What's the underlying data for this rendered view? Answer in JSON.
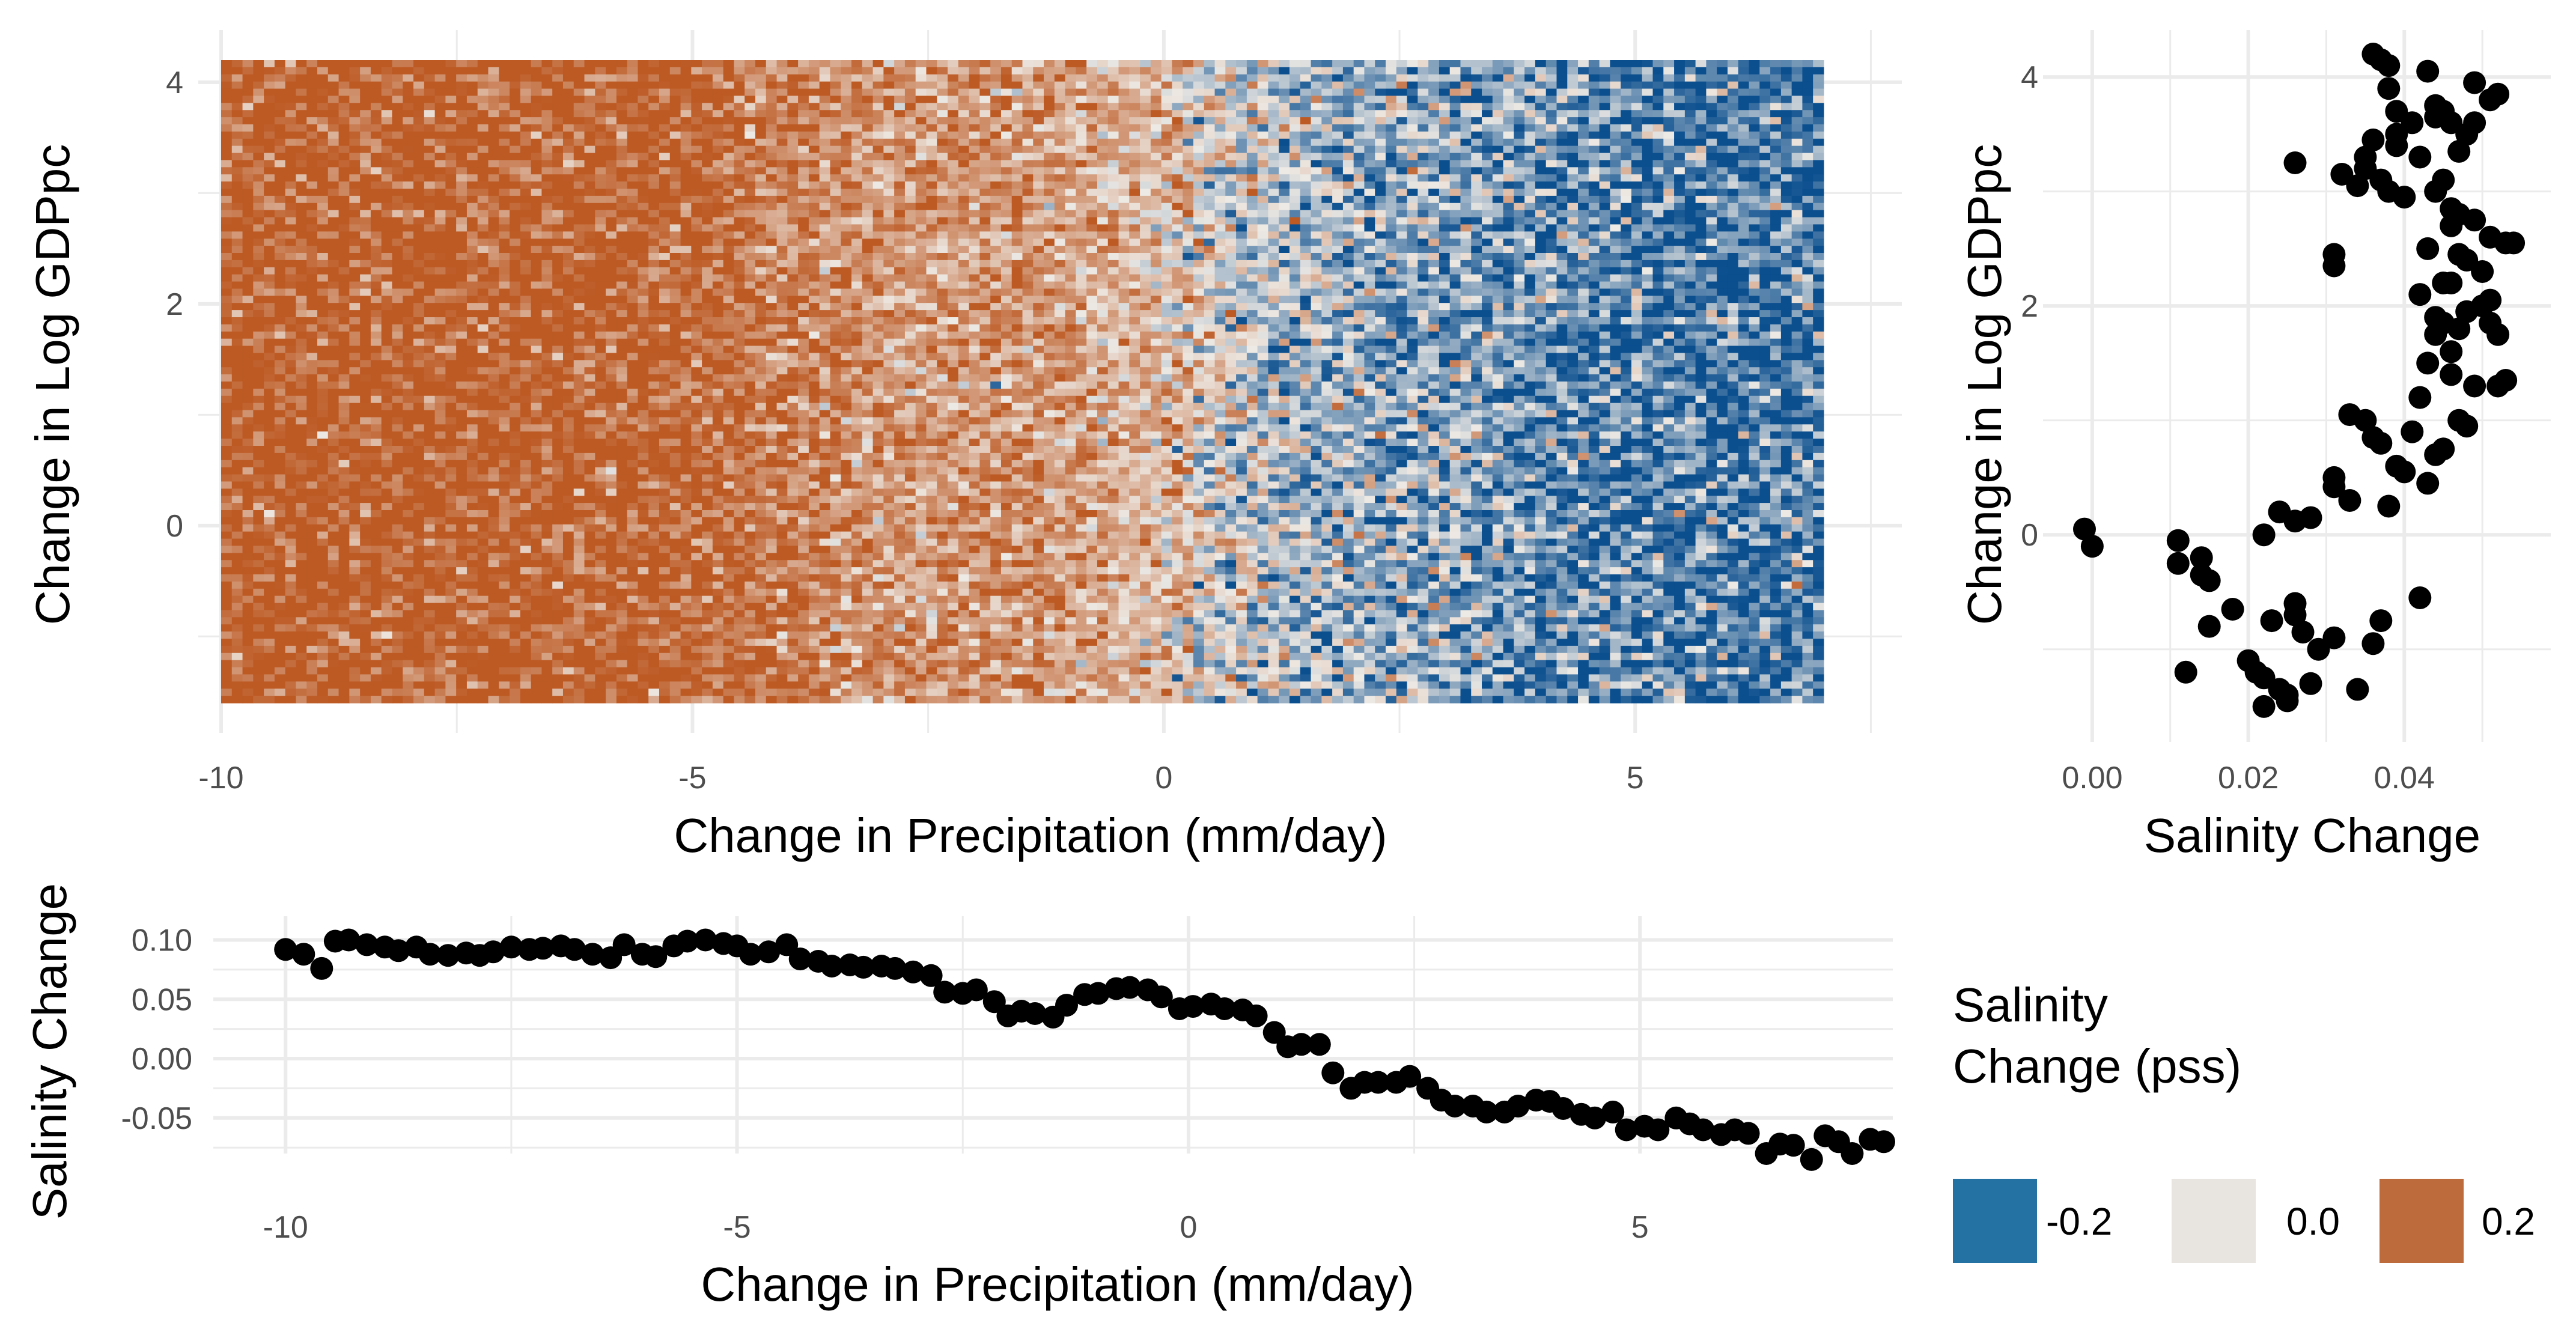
{
  "chart_data": [
    {
      "type": "heatmap",
      "xlabel": "Change in Precipitation (mm/day)",
      "ylabel": "Change in Log GDPpc",
      "xlim": [
        -10,
        7
      ],
      "ylim": [
        -1.6,
        4.2
      ],
      "x_ticks": [
        -10,
        -5,
        0,
        5
      ],
      "x_tick_labels": [
        "-10",
        "-5",
        "0",
        "5"
      ],
      "y_ticks": [
        0,
        2,
        4
      ],
      "y_tick_labels": [
        "0",
        "2",
        "4"
      ],
      "grid": true,
      "fill_variable": "Salinity Change (pss)",
      "fill_trend": [
        {
          "x": -10,
          "value": 0.1
        },
        {
          "x": -5,
          "value": 0.095
        },
        {
          "x": -3,
          "value": 0.055
        },
        {
          "x": -1.5,
          "value": 0.06
        },
        {
          "x": 0,
          "value": 0.03
        },
        {
          "x": 1,
          "value": -0.02
        },
        {
          "x": 3,
          "value": -0.045
        },
        {
          "x": 5,
          "value": -0.07
        },
        {
          "x": 7,
          "value": -0.075
        }
      ]
    },
    {
      "type": "scatter",
      "xlabel": "Salinity Change",
      "ylabel": "Change in Log GDPpc",
      "xlim": [
        -0.004,
        0.058
      ],
      "ylim": [
        -1.6,
        4.2
      ],
      "x_ticks": [
        0.0,
        0.02,
        0.04
      ],
      "x_tick_labels": [
        "0.00",
        "0.02",
        "0.04"
      ],
      "y_ticks": [
        0,
        2,
        4
      ],
      "y_tick_labels": [
        "0",
        "2",
        "4"
      ],
      "grid": true,
      "points": [
        [
          -0.001,
          0.05
        ],
        [
          0.0,
          -0.1
        ],
        [
          0.011,
          -0.05
        ],
        [
          0.011,
          -0.25
        ],
        [
          0.014,
          -0.2
        ],
        [
          0.014,
          -0.35
        ],
        [
          0.015,
          -0.4
        ],
        [
          0.012,
          -1.2
        ],
        [
          0.015,
          -0.8
        ],
        [
          0.018,
          -0.65
        ],
        [
          0.02,
          -1.1
        ],
        [
          0.021,
          -1.2
        ],
        [
          0.022,
          -1.25
        ],
        [
          0.022,
          -1.5
        ],
        [
          0.023,
          -0.75
        ],
        [
          0.024,
          -1.35
        ],
        [
          0.025,
          -1.4
        ],
        [
          0.025,
          -1.45
        ],
        [
          0.026,
          -0.6
        ],
        [
          0.026,
          -0.7
        ],
        [
          0.027,
          -0.85
        ],
        [
          0.028,
          -1.3
        ],
        [
          0.029,
          -1.0
        ],
        [
          0.031,
          -0.9
        ],
        [
          0.034,
          -1.35
        ],
        [
          0.036,
          -0.95
        ],
        [
          0.037,
          -0.75
        ],
        [
          0.022,
          0.0
        ],
        [
          0.024,
          0.2
        ],
        [
          0.026,
          0.12
        ],
        [
          0.028,
          0.15
        ],
        [
          0.031,
          0.42
        ],
        [
          0.031,
          0.5
        ],
        [
          0.033,
          0.3
        ],
        [
          0.033,
          1.05
        ],
        [
          0.035,
          1.0
        ],
        [
          0.036,
          0.85
        ],
        [
          0.037,
          0.8
        ],
        [
          0.038,
          0.25
        ],
        [
          0.039,
          0.6
        ],
        [
          0.04,
          0.55
        ],
        [
          0.041,
          0.9
        ],
        [
          0.042,
          1.2
        ],
        [
          0.043,
          0.45
        ],
        [
          0.044,
          0.7
        ],
        [
          0.045,
          0.75
        ],
        [
          0.046,
          1.4
        ],
        [
          0.047,
          1.0
        ],
        [
          0.048,
          0.95
        ],
        [
          0.049,
          1.3
        ],
        [
          0.042,
          -0.55
        ],
        [
          0.043,
          1.5
        ],
        [
          0.044,
          1.9
        ],
        [
          0.044,
          1.75
        ],
        [
          0.045,
          1.85
        ],
        [
          0.046,
          1.6
        ],
        [
          0.047,
          1.8
        ],
        [
          0.048,
          1.95
        ],
        [
          0.05,
          2.0
        ],
        [
          0.051,
          2.05
        ],
        [
          0.052,
          1.75
        ],
        [
          0.052,
          1.3
        ],
        [
          0.053,
          1.35
        ],
        [
          0.053,
          2.55
        ],
        [
          0.051,
          2.6
        ],
        [
          0.054,
          2.55
        ],
        [
          0.042,
          2.1
        ],
        [
          0.043,
          2.5
        ],
        [
          0.045,
          2.2
        ],
        [
          0.046,
          2.2
        ],
        [
          0.047,
          2.45
        ],
        [
          0.048,
          2.4
        ],
        [
          0.05,
          2.3
        ],
        [
          0.051,
          1.85
        ],
        [
          0.046,
          2.7
        ],
        [
          0.047,
          2.8
        ],
        [
          0.049,
          2.75
        ],
        [
          0.031,
          2.35
        ],
        [
          0.031,
          2.45
        ],
        [
          0.034,
          3.05
        ],
        [
          0.035,
          3.2
        ],
        [
          0.035,
          3.3
        ],
        [
          0.036,
          3.45
        ],
        [
          0.037,
          3.1
        ],
        [
          0.038,
          3.0
        ],
        [
          0.039,
          3.4
        ],
        [
          0.04,
          2.95
        ],
        [
          0.042,
          3.3
        ],
        [
          0.044,
          3.0
        ],
        [
          0.045,
          3.1
        ],
        [
          0.046,
          2.85
        ],
        [
          0.047,
          3.35
        ],
        [
          0.048,
          3.5
        ],
        [
          0.049,
          3.6
        ],
        [
          0.026,
          3.25
        ],
        [
          0.032,
          3.15
        ],
        [
          0.036,
          4.2
        ],
        [
          0.037,
          4.15
        ],
        [
          0.038,
          4.1
        ],
        [
          0.038,
          3.9
        ],
        [
          0.039,
          3.7
        ],
        [
          0.039,
          3.5
        ],
        [
          0.041,
          3.6
        ],
        [
          0.043,
          4.05
        ],
        [
          0.044,
          3.75
        ],
        [
          0.044,
          3.65
        ],
        [
          0.045,
          3.7
        ],
        [
          0.046,
          3.6
        ],
        [
          0.049,
          3.95
        ],
        [
          0.051,
          3.8
        ],
        [
          0.052,
          3.85
        ]
      ]
    },
    {
      "type": "scatter",
      "xlabel": "Change in Precipitation (mm/day)",
      "ylabel": "Salinity Change",
      "xlim": [
        -10.8,
        7.8
      ],
      "ylim": [
        -0.08,
        0.12
      ],
      "x_ticks": [
        -10,
        -5,
        0,
        5
      ],
      "x_tick_labels": [
        "-10",
        "-5",
        "0",
        "5"
      ],
      "y_ticks": [
        0.1,
        0.05,
        0.0,
        -0.05
      ],
      "y_tick_labels": [
        "0.10",
        "0.05",
        "0.00",
        "-0.05"
      ],
      "grid": true,
      "points": [
        [
          -10.0,
          0.092
        ],
        [
          -9.8,
          0.088
        ],
        [
          -9.6,
          0.076
        ],
        [
          -9.45,
          0.099
        ],
        [
          -9.3,
          0.1
        ],
        [
          -9.1,
          0.096
        ],
        [
          -8.9,
          0.094
        ],
        [
          -8.75,
          0.091
        ],
        [
          -8.55,
          0.094
        ],
        [
          -8.4,
          0.088
        ],
        [
          -8.2,
          0.087
        ],
        [
          -8.0,
          0.089
        ],
        [
          -7.85,
          0.087
        ],
        [
          -7.7,
          0.09
        ],
        [
          -7.5,
          0.094
        ],
        [
          -7.3,
          0.092
        ],
        [
          -7.15,
          0.093
        ],
        [
          -6.95,
          0.095
        ],
        [
          -6.8,
          0.092
        ],
        [
          -6.6,
          0.088
        ],
        [
          -6.4,
          0.085
        ],
        [
          -6.25,
          0.096
        ],
        [
          -6.05,
          0.088
        ],
        [
          -5.9,
          0.086
        ],
        [
          -5.7,
          0.095
        ],
        [
          -5.55,
          0.099
        ],
        [
          -5.35,
          0.1
        ],
        [
          -5.15,
          0.097
        ],
        [
          -5.0,
          0.095
        ],
        [
          -4.85,
          0.088
        ],
        [
          -4.65,
          0.09
        ],
        [
          -4.45,
          0.096
        ],
        [
          -4.3,
          0.084
        ],
        [
          -4.1,
          0.082
        ],
        [
          -3.95,
          0.078
        ],
        [
          -3.75,
          0.079
        ],
        [
          -3.6,
          0.077
        ],
        [
          -3.4,
          0.078
        ],
        [
          -3.25,
          0.076
        ],
        [
          -3.05,
          0.073
        ],
        [
          -2.85,
          0.07
        ],
        [
          -2.7,
          0.056
        ],
        [
          -2.5,
          0.055
        ],
        [
          -2.35,
          0.058
        ],
        [
          -2.15,
          0.048
        ],
        [
          -2.0,
          0.036
        ],
        [
          -1.85,
          0.04
        ],
        [
          -1.7,
          0.038
        ],
        [
          -1.5,
          0.035
        ],
        [
          -1.35,
          0.045
        ],
        [
          -1.15,
          0.054
        ],
        [
          -1.0,
          0.055
        ],
        [
          -0.8,
          0.059
        ],
        [
          -0.65,
          0.06
        ],
        [
          -0.45,
          0.058
        ],
        [
          -0.3,
          0.052
        ],
        [
          -0.1,
          0.042
        ],
        [
          0.05,
          0.044
        ],
        [
          0.25,
          0.046
        ],
        [
          0.4,
          0.042
        ],
        [
          0.6,
          0.041
        ],
        [
          0.75,
          0.036
        ],
        [
          0.95,
          0.022
        ],
        [
          1.1,
          0.01
        ],
        [
          1.25,
          0.012
        ],
        [
          1.45,
          0.012
        ],
        [
          1.6,
          -0.012
        ],
        [
          1.8,
          -0.025
        ],
        [
          1.95,
          -0.02
        ],
        [
          2.1,
          -0.02
        ],
        [
          2.3,
          -0.02
        ],
        [
          2.45,
          -0.015
        ],
        [
          2.65,
          -0.025
        ],
        [
          2.8,
          -0.035
        ],
        [
          2.95,
          -0.04
        ],
        [
          3.15,
          -0.04
        ],
        [
          3.3,
          -0.045
        ],
        [
          3.5,
          -0.045
        ],
        [
          3.65,
          -0.04
        ],
        [
          3.85,
          -0.035
        ],
        [
          4.0,
          -0.036
        ],
        [
          4.15,
          -0.042
        ],
        [
          4.35,
          -0.047
        ],
        [
          4.5,
          -0.05
        ],
        [
          4.7,
          -0.045
        ],
        [
          4.85,
          -0.06
        ],
        [
          5.05,
          -0.057
        ],
        [
          5.2,
          -0.06
        ],
        [
          5.4,
          -0.05
        ],
        [
          5.55,
          -0.055
        ],
        [
          5.7,
          -0.06
        ],
        [
          5.9,
          -0.064
        ],
        [
          6.05,
          -0.06
        ],
        [
          6.2,
          -0.063
        ],
        [
          6.4,
          -0.08
        ],
        [
          6.55,
          -0.072
        ],
        [
          6.7,
          -0.073
        ],
        [
          6.9,
          -0.085
        ],
        [
          7.05,
          -0.065
        ],
        [
          7.2,
          -0.07
        ],
        [
          7.35,
          -0.08
        ],
        [
          7.55,
          -0.068
        ],
        [
          7.7,
          -0.07
        ]
      ]
    }
  ],
  "legend": {
    "title_line1": "Salinity",
    "title_line2": "Change (pss)",
    "items": [
      {
        "label": "-0.2",
        "color": "#2471a3"
      },
      {
        "label": "0.0",
        "color": "#e8e4df"
      },
      {
        "label": "0.2",
        "color": "#bd6b3c"
      }
    ]
  }
}
